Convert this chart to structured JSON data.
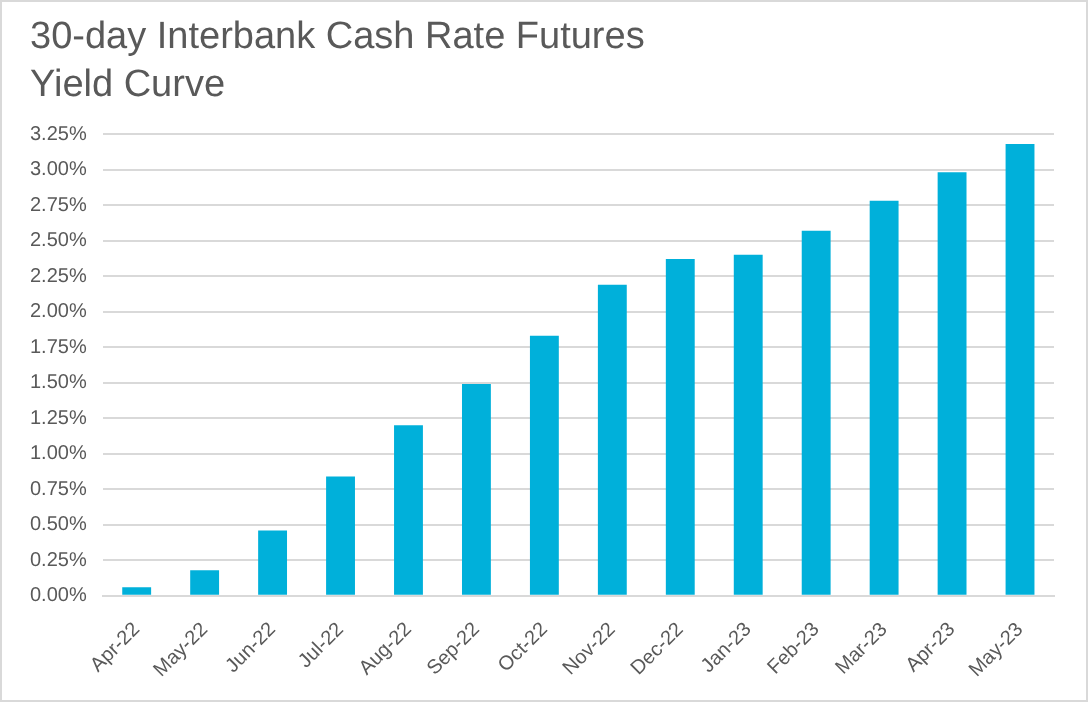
{
  "chart_data": {
    "type": "bar",
    "title": "30-day Interbank Cash Rate Futures Yield Curve",
    "categories": [
      "Apr-22",
      "May-22",
      "Jun-22",
      "Jul-22",
      "Aug-22",
      "Sep-22",
      "Oct-22",
      "Nov-22",
      "Dec-22",
      "Jan-23",
      "Feb-23",
      "Mar-23",
      "Apr-23",
      "May-23"
    ],
    "values": [
      0.06,
      0.18,
      0.46,
      0.84,
      1.2,
      1.49,
      1.83,
      2.19,
      2.37,
      2.4,
      2.57,
      2.78,
      2.98,
      3.18
    ],
    "color": "#00b0da",
    "ylim": [
      0,
      3.25
    ],
    "yticks": [
      {
        "value": 0,
        "label": "0.00%"
      },
      {
        "value": 0.25,
        "label": "0.25%"
      },
      {
        "value": 0.5,
        "label": "0.50%"
      },
      {
        "value": 0.75,
        "label": "0.75%"
      },
      {
        "value": 1,
        "label": "1.00%"
      },
      {
        "value": 1.25,
        "label": "1.25%"
      },
      {
        "value": 1.5,
        "label": "1.50%"
      },
      {
        "value": 1.75,
        "label": "1.75%"
      },
      {
        "value": 2,
        "label": "2.00%"
      },
      {
        "value": 2.25,
        "label": "2.25%"
      },
      {
        "value": 2.5,
        "label": "2.50%"
      },
      {
        "value": 2.75,
        "label": "2.75%"
      },
      {
        "value": 3,
        "label": "3.00%"
      },
      {
        "value": 3.25,
        "label": "3.25%"
      }
    ],
    "grid": "y"
  }
}
